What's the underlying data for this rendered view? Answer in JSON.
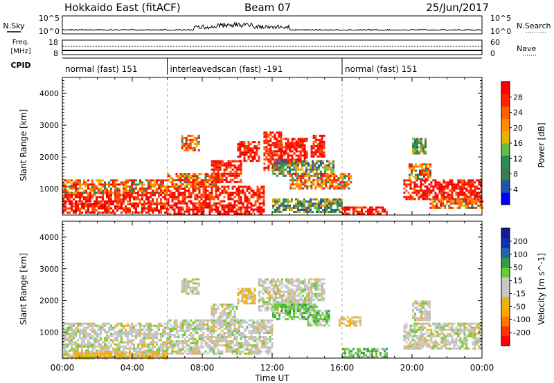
{
  "header": {
    "station": "Hokkaido East (fitACF)",
    "beam": "Beam 07",
    "date": "25/Jun/2017"
  },
  "top_panels": {
    "nsky_label": "N.Sky",
    "nsearch_label": "N.Search",
    "nsky_ticks": [
      "10^5",
      "10^0"
    ],
    "nsearch_ticks": [
      "10^5",
      "10^0"
    ],
    "freq_label": "Freq.",
    "freq_unit": "[MHz]",
    "freq_ticks": [
      "18",
      "8"
    ],
    "nave_label": "Nave",
    "nave_ticks": [
      "60",
      "0"
    ],
    "cpid_label": "CPID",
    "modes": [
      {
        "label": "normal (fast) 151",
        "start_hr": 0,
        "end_hr": 6
      },
      {
        "label": "interleavedscan (fast) -191",
        "start_hr": 6,
        "end_hr": 16
      },
      {
        "label": "normal (fast) 151",
        "start_hr": 16,
        "end_hr": 24
      }
    ]
  },
  "colorbars": {
    "power": {
      "label": "Power [dB]",
      "ticks": [
        "28",
        "24",
        "20",
        "16",
        "12",
        "8",
        "4"
      ],
      "colors": [
        "#0000ff",
        "#2255aa",
        "#3d7a50",
        "#2e8b57",
        "#66bb44",
        "#e8b400",
        "#ff8c00",
        "#ff6000",
        "#ff2200",
        "#ff0000"
      ]
    },
    "velocity": {
      "label": "Velocity [m s^-1]",
      "ticks": [
        "200",
        "100",
        "50",
        "15",
        "-15",
        "-50",
        "-100",
        "-200"
      ],
      "colors": [
        "#ff0000",
        "#ff3300",
        "#ff7700",
        "#ffaa00",
        "#e6b422",
        "#c8c8c8",
        "#c8c8c8",
        "#66cc33",
        "#339944",
        "#2266aa",
        "#1133aa",
        "#1a1a99"
      ]
    }
  },
  "chart_data": {
    "type": "heatmap",
    "xlabel": "Time UT",
    "ylabel": "Slant Range [km]",
    "x_ticks": [
      "00:00",
      "04:00",
      "08:00",
      "12:00",
      "16:00",
      "20:00",
      "00:00"
    ],
    "xlim_hours": [
      0,
      24
    ],
    "y_ticks": [
      1000,
      2000,
      3000,
      4000
    ],
    "ylim_km": [
      180,
      4500
    ],
    "mode_boundaries_hr": [
      6,
      16
    ],
    "power_regions": [
      {
        "t0": 0.0,
        "t1": 6.0,
        "r0": 250,
        "r1": 550,
        "level": "high"
      },
      {
        "t0": 0.0,
        "t1": 6.0,
        "r0": 550,
        "r1": 900,
        "level": "high"
      },
      {
        "t0": 0.0,
        "t1": 6.0,
        "r0": 900,
        "r1": 1300,
        "level": "mid"
      },
      {
        "t0": 6.0,
        "t1": 11.5,
        "r0": 250,
        "r1": 1100,
        "level": "high"
      },
      {
        "t0": 6.0,
        "t1": 9.0,
        "r0": 1100,
        "r1": 1500,
        "level": "mid"
      },
      {
        "t0": 6.8,
        "t1": 7.8,
        "r0": 2200,
        "r1": 2700,
        "level": "mid"
      },
      {
        "t0": 8.5,
        "t1": 10.2,
        "r0": 1200,
        "r1": 1900,
        "level": "high"
      },
      {
        "t0": 10.0,
        "t1": 11.2,
        "r0": 1900,
        "r1": 2500,
        "level": "high"
      },
      {
        "t0": 11.5,
        "t1": 12.5,
        "r0": 1600,
        "r1": 2800,
        "level": "high"
      },
      {
        "t0": 12.5,
        "t1": 14.0,
        "r0": 1800,
        "r1": 2600,
        "level": "high"
      },
      {
        "t0": 14.2,
        "t1": 15.0,
        "r0": 2000,
        "r1": 2700,
        "level": "high"
      },
      {
        "t0": 12.0,
        "t1": 15.5,
        "r0": 1400,
        "r1": 1900,
        "level": "low"
      },
      {
        "t0": 13.0,
        "t1": 16.5,
        "r0": 1000,
        "r1": 1500,
        "level": "mid"
      },
      {
        "t0": 12.0,
        "t1": 16.0,
        "r0": 250,
        "r1": 700,
        "level": "low"
      },
      {
        "t0": 16.0,
        "t1": 18.5,
        "r0": 250,
        "r1": 450,
        "level": "high"
      },
      {
        "t0": 19.5,
        "t1": 24.0,
        "r0": 700,
        "r1": 1300,
        "level": "high"
      },
      {
        "t0": 19.8,
        "t1": 21.0,
        "r0": 1300,
        "r1": 1800,
        "level": "mid"
      },
      {
        "t0": 20.0,
        "t1": 20.8,
        "r0": 2100,
        "r1": 2600,
        "level": "low"
      },
      {
        "t0": 21.0,
        "t1": 24.0,
        "r0": 400,
        "r1": 700,
        "level": "mid"
      }
    ],
    "velocity_regions": [
      {
        "t0": 0.0,
        "t1": 6.0,
        "r0": 250,
        "r1": 1300,
        "kind": "gray"
      },
      {
        "t0": 0.0,
        "t1": 6.0,
        "r0": 200,
        "r1": 400,
        "kind": "slow-neg"
      },
      {
        "t0": 6.0,
        "t1": 12.0,
        "r0": 300,
        "r1": 1400,
        "kind": "gray"
      },
      {
        "t0": 6.8,
        "t1": 7.8,
        "r0": 2200,
        "r1": 2700,
        "kind": "gray"
      },
      {
        "t0": 8.5,
        "t1": 10.0,
        "r0": 1300,
        "r1": 1900,
        "kind": "gray"
      },
      {
        "t0": 10.0,
        "t1": 11.0,
        "r0": 1900,
        "r1": 2400,
        "kind": "slow-neg"
      },
      {
        "t0": 11.2,
        "t1": 14.2,
        "r0": 1700,
        "r1": 2700,
        "kind": "gray"
      },
      {
        "t0": 14.2,
        "t1": 15.0,
        "r0": 2000,
        "r1": 2700,
        "kind": "gray"
      },
      {
        "t0": 12.0,
        "t1": 14.5,
        "r0": 1400,
        "r1": 1900,
        "kind": "slow-pos"
      },
      {
        "t0": 14.0,
        "t1": 15.2,
        "r0": 1200,
        "r1": 1700,
        "kind": "slow-pos"
      },
      {
        "t0": 15.8,
        "t1": 17.0,
        "r0": 1200,
        "r1": 1500,
        "kind": "slow-neg"
      },
      {
        "t0": 16.0,
        "t1": 18.5,
        "r0": 200,
        "r1": 500,
        "kind": "slow-pos"
      },
      {
        "t0": 19.5,
        "t1": 24.0,
        "r0": 500,
        "r1": 1300,
        "kind": "gray"
      },
      {
        "t0": 20.0,
        "t1": 21.0,
        "r0": 1400,
        "r1": 2000,
        "kind": "gray"
      }
    ]
  }
}
